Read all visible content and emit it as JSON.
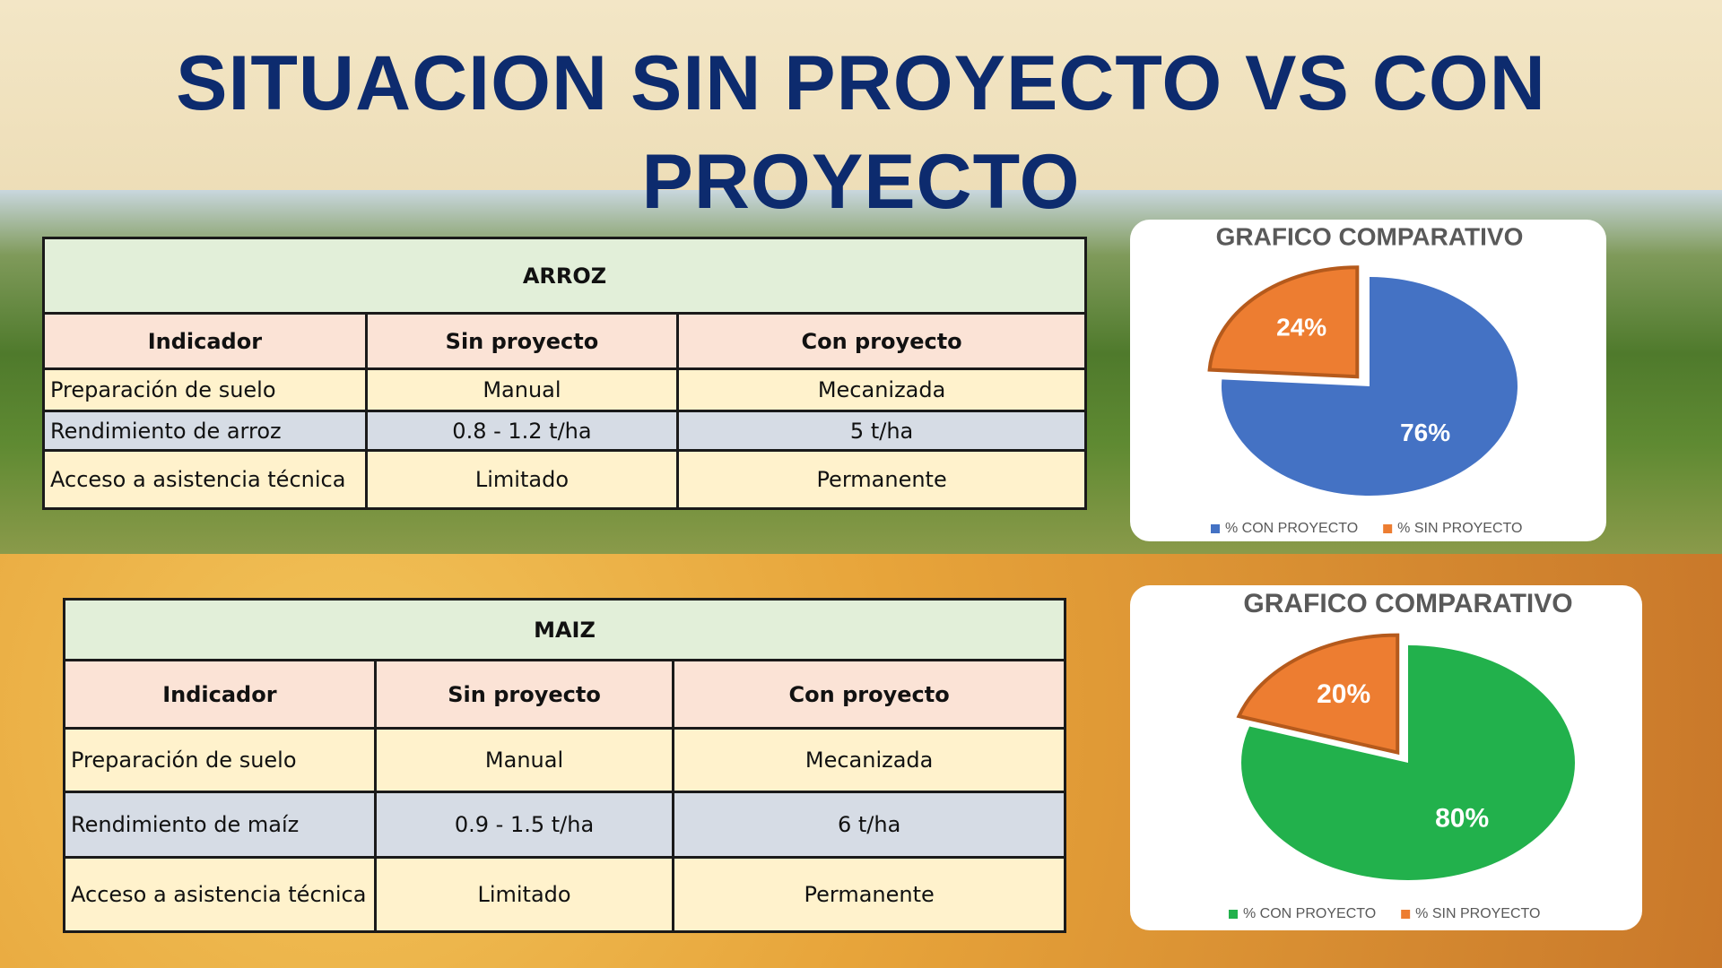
{
  "title": "SITUACION SIN PROYECTO VS CON PROYECTO",
  "tables": [
    {
      "title": "ARROZ",
      "header": [
        "Indicador",
        "Sin proyecto",
        "Con proyecto"
      ],
      "rows": [
        [
          "Preparación de suelo",
          "Manual",
          "Mecanizada"
        ],
        [
          "Rendimiento de arroz",
          "0.8 - 1.2 t/ha",
          "5 t/ha"
        ],
        [
          "Acceso a asistencia técnica",
          "Limitado",
          "Permanente"
        ]
      ]
    },
    {
      "title": "MAIZ",
      "header": [
        "Indicador",
        "Sin proyecto",
        "Con proyecto"
      ],
      "rows": [
        [
          "Preparación de suelo",
          "Manual",
          "Mecanizada"
        ],
        [
          "Rendimiento de maíz",
          "0.9 - 1.5 t/ha",
          "6 t/ha"
        ],
        [
          "Acceso a asistencia técnica",
          "Limitado",
          "Permanente"
        ]
      ]
    }
  ],
  "chart_data": [
    {
      "type": "pie",
      "title": "GRAFICO COMPARATIVO",
      "categories": [
        "% CON PROYECTO",
        "% SIN PROYECTO"
      ],
      "values": [
        76,
        24
      ],
      "value_labels": [
        "76%",
        "24%"
      ],
      "colors": [
        "#4472c4",
        "#ed7d31"
      ]
    },
    {
      "type": "pie",
      "title": "GRAFICO COMPARATIVO",
      "categories": [
        "% CON PROYECTO",
        "% SIN PROYECTO"
      ],
      "values": [
        80,
        20
      ],
      "value_labels": [
        "80%",
        "20%"
      ],
      "colors": [
        "#22b14c",
        "#ed7d31"
      ]
    }
  ]
}
